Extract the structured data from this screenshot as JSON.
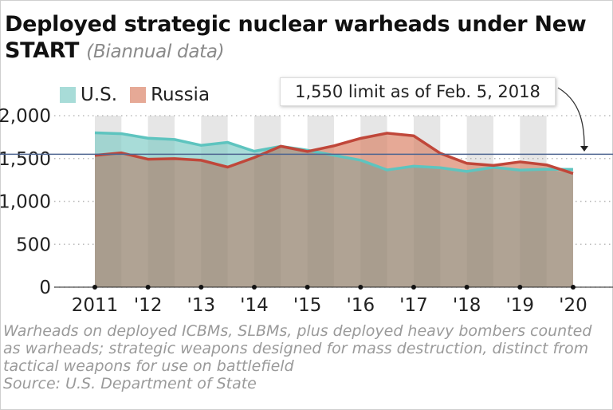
{
  "title": "Deployed strategic nuclear warheads under New START",
  "subtitle": "(Biannual data)",
  "notes": "Warheads on deployed ICBMs, SLBMs, plus deployed heavy bombers counted as warheads; strategic weapons designed for mass destruction, distinct from tactical weapons for use on battlefield",
  "source": "Source: U.S. Department of State",
  "chart_data": {
    "type": "area",
    "title": "Deployed strategic nuclear warheads under New START",
    "ylim": [
      0,
      2000
    ],
    "yticks": [
      {
        "v": 0,
        "label": "0"
      },
      {
        "v": 500,
        "label": "500"
      },
      {
        "v": 1000,
        "label": "1,000"
      },
      {
        "v": 1500,
        "label": "1,500"
      },
      {
        "v": 2000,
        "label": "2,000"
      }
    ],
    "xtick_labels": [
      "2011",
      "'12",
      "'13",
      "'14",
      "'15",
      "'16",
      "'17",
      "'18",
      "'19",
      "'20"
    ],
    "grid": "horizontal dotted",
    "legend_placement": "top-left",
    "series": [
      {
        "name": "U.S.",
        "color": "#5ec4bf",
        "fill": "#a8dcd8",
        "values": [
          1800,
          1790,
          1737,
          1722,
          1654,
          1688,
          1585,
          1642,
          1597,
          1538,
          1481,
          1367,
          1411,
          1393,
          1350,
          1398,
          1365,
          1376,
          1373
        ]
      },
      {
        "name": "Russia",
        "color": "#c0473a",
        "fill": "#e6a996",
        "values": [
          1537,
          1566,
          1492,
          1499,
          1480,
          1400,
          1512,
          1643,
          1582,
          1648,
          1735,
          1796,
          1765,
          1561,
          1444,
          1420,
          1461,
          1426,
          1326
        ]
      }
    ],
    "overlap_color": "#aba394",
    "reference_line": {
      "value": 1550,
      "label": "1,550 limit as of Feb. 5, 2018",
      "color": "#4d6490"
    }
  }
}
